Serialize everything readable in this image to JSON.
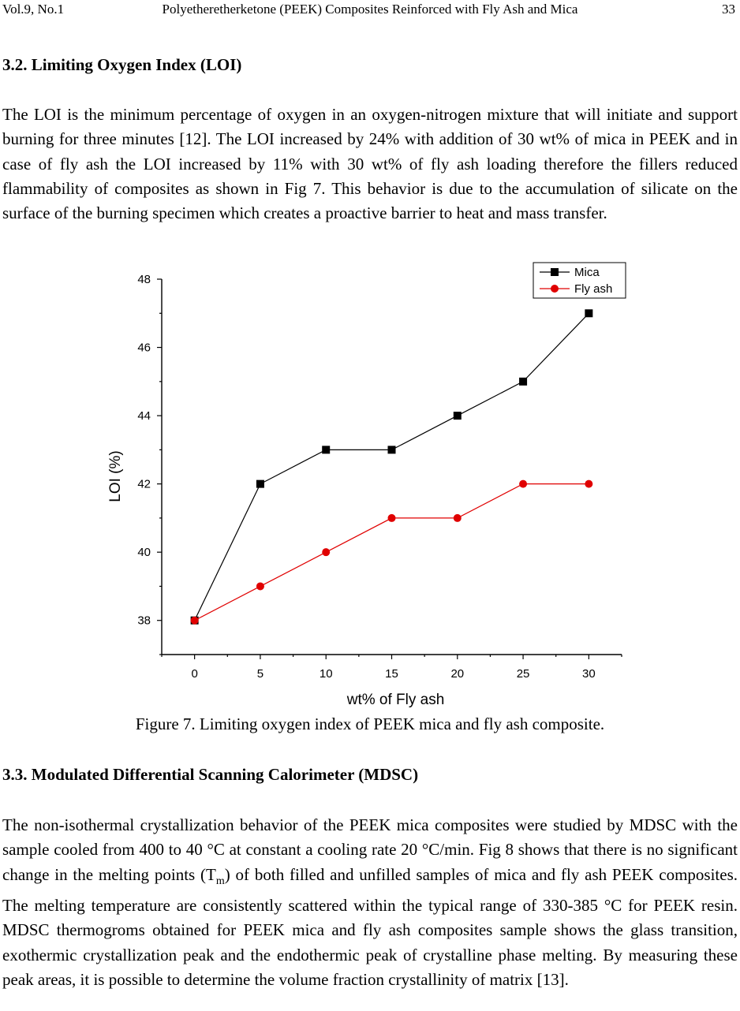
{
  "header": {
    "volume": "Vol.9, No.1",
    "title": "Polyetheretherketone (PEEK) Composites Reinforced with Fly Ash and Mica",
    "page": "33"
  },
  "section_loi": {
    "heading": "3.2. Limiting Oxygen Index (LOI)",
    "paragraph": "The LOI is the minimum percentage of oxygen in an oxygen-nitrogen mixture that will initiate and support burning for three minutes [12]. The LOI increased by 24% with addition of 30 wt% of mica in PEEK and in case of fly ash the LOI increased by 11% with 30 wt% of fly ash loading therefore the fillers reduced flammability of composites as shown in Fig 7. This behavior is due to the accumulation of silicate on the surface of the burning specimen which creates a proactive barrier to heat and mass transfer."
  },
  "chart_data": {
    "type": "line",
    "title": "",
    "xlabel": "wt% of Fly ash",
    "ylabel": "LOI (%)",
    "x": [
      0,
      5,
      10,
      15,
      20,
      25,
      30
    ],
    "xlim": [
      -2.5,
      32.5
    ],
    "ylim": [
      37,
      48
    ],
    "xticks": [
      0,
      5,
      10,
      15,
      20,
      25,
      30
    ],
    "yticks": [
      38,
      40,
      42,
      44,
      46,
      48
    ],
    "legend_position": "top-right",
    "grid": false,
    "series": [
      {
        "name": "Mica",
        "values": [
          38,
          42,
          43,
          43,
          44,
          45,
          47
        ],
        "color": "#000000",
        "marker": "square"
      },
      {
        "name": "Fly ash",
        "values": [
          38,
          39,
          40,
          41,
          41,
          42,
          42
        ],
        "color": "#e00000",
        "marker": "circle"
      }
    ]
  },
  "figure": {
    "caption": "Figure 7. Limiting oxygen index of PEEK mica and fly ash composite."
  },
  "section_mdsc": {
    "heading": "3.3. Modulated Differential Scanning Calorimeter (MDSC)",
    "para_part1": "The non-isothermal crystallization behavior of the PEEK mica composites were studied by MDSC with the sample cooled from 400 to 40 °C at constant a cooling rate 20 °C/min. Fig 8 shows that there is no significant change in the melting points (T",
    "para_sub": "m",
    "para_part2": ") of both filled and unfilled samples of mica and fly ash PEEK composites. The melting temperature are consistently scattered within the typical range of 330-385 °C for PEEK resin. MDSC thermogroms obtained for PEEK mica and fly ash composites sample shows the glass transition, exothermic crystallization peak and the endothermic peak of crystalline phase melting. By measuring these peak areas, it is possible to determine the volume fraction crystallinity of matrix [13]."
  }
}
